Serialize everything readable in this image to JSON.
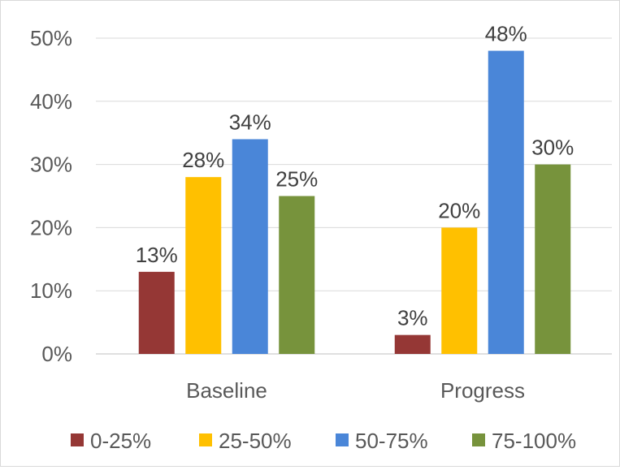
{
  "chart_data": {
    "type": "bar",
    "title": "",
    "xlabel": "",
    "ylabel": "",
    "categories": [
      "Baseline",
      "Progress"
    ],
    "series": [
      {
        "name": "0-25%",
        "values": [
          13,
          3
        ],
        "labels": [
          "13%",
          "3%"
        ],
        "color": "#953735"
      },
      {
        "name": "25-50%",
        "values": [
          28,
          20
        ],
        "labels": [
          "28%",
          "20%"
        ],
        "color": "#FFC000"
      },
      {
        "name": "50-75%",
        "values": [
          34,
          48
        ],
        "labels": [
          "34%",
          "48%"
        ],
        "color": "#4A86D8"
      },
      {
        "name": "75-100%",
        "values": [
          25,
          30
        ],
        "labels": [
          "25%",
          "30%"
        ],
        "color": "#77933C"
      }
    ],
    "ylim": [
      0,
      50
    ],
    "yticks": [
      0,
      10,
      20,
      30,
      40,
      50
    ],
    "ytick_labels": [
      "0%",
      "10%",
      "20%",
      "30%",
      "40%",
      "50%"
    ],
    "grid": true,
    "legend_position": "bottom"
  }
}
